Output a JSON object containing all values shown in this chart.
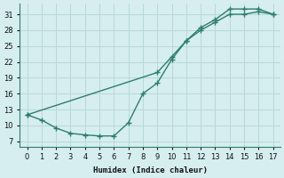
{
  "xlabel": "Humidex (Indice chaleur)",
  "ylabel": "",
  "background_color": "#d6eef0",
  "line_color": "#2e7d6e",
  "grid_color": "#b8d8da",
  "line1_x": [
    0,
    1,
    2,
    3,
    4,
    5,
    6,
    7,
    8,
    9,
    10,
    11,
    12,
    13,
    14,
    15,
    16,
    17
  ],
  "line1_y": [
    12,
    11,
    9.5,
    8.5,
    8.2,
    8.0,
    8.0,
    10.5,
    16,
    18,
    22.5,
    26,
    28.5,
    30,
    32,
    32,
    32,
    31
  ],
  "line2_x": [
    0,
    9,
    10,
    11,
    12,
    13,
    14,
    15,
    16,
    17
  ],
  "line2_y": [
    12,
    20,
    23,
    26,
    28,
    29.5,
    31,
    31,
    31.5,
    31
  ],
  "yticks": [
    7,
    10,
    13,
    16,
    19,
    22,
    25,
    28,
    31
  ],
  "xticks": [
    0,
    1,
    2,
    3,
    4,
    5,
    6,
    7,
    8,
    9,
    10,
    11,
    12,
    13,
    14,
    15,
    16,
    17
  ],
  "ylim": [
    6,
    33
  ],
  "xlim": [
    -0.5,
    17.5
  ]
}
